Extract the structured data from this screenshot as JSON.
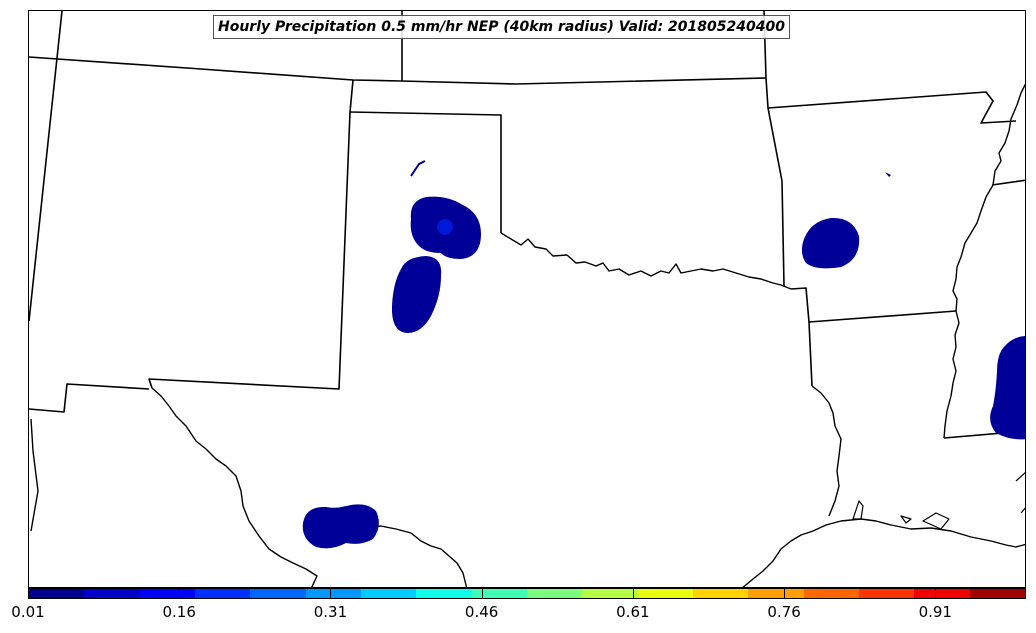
{
  "title": "Hourly Precipitation 0.5 mm/hr NEP (40km radius) Valid: 201805240400",
  "colorbar": {
    "min": 0.01,
    "max": 1.0,
    "tick_labels": [
      "0.01",
      "0.16",
      "0.31",
      "0.46",
      "0.61",
      "0.76",
      "0.91"
    ],
    "colors": [
      "#00008f",
      "#0000c8",
      "#0000ff",
      "#0030ff",
      "#0064ff",
      "#0098ff",
      "#00ccff",
      "#10ffe8",
      "#40ffb4",
      "#7cff7c",
      "#b4ff44",
      "#e8ff10",
      "#ffd200",
      "#ff9e00",
      "#ff6800",
      "#ff3400",
      "#f00000",
      "#a00000"
    ]
  },
  "map": {
    "region": "Southern Plains, United States",
    "precip_color": "#000098",
    "precip_core_color": "#0018d8",
    "border_color": "#000000"
  }
}
